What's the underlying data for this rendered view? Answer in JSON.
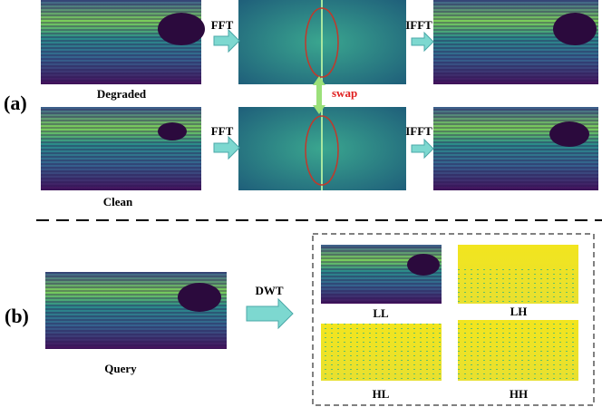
{
  "panel_a": {
    "label": "(a)",
    "degraded": "Degraded",
    "clean": "Clean",
    "fft": [
      "FFT",
      "FFT"
    ],
    "ifft": [
      "IFFT",
      "IFFT"
    ],
    "swap": "swap"
  },
  "panel_b": {
    "label": "(b)",
    "query": "Query",
    "dwt": "DWT",
    "subbands": [
      "LL",
      "LH",
      "HL",
      "HH"
    ]
  }
}
